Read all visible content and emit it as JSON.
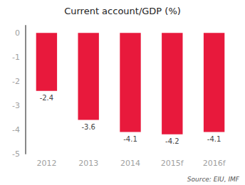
{
  "chart_data": {
    "type": "bar",
    "title": "Current account/GDP (%)",
    "categories": [
      "2012",
      "2013",
      "2014",
      "2015f",
      "2016f"
    ],
    "values": [
      -2.4,
      -3.6,
      -4.1,
      -4.2,
      -4.1
    ],
    "color": "#e8193c",
    "ylim": [
      -5,
      0.3
    ],
    "yticks": [
      0,
      -1,
      -2,
      -3,
      -4,
      -5
    ],
    "grid": false,
    "data_labels": true,
    "annotation": "Source: EIU, IMF"
  }
}
